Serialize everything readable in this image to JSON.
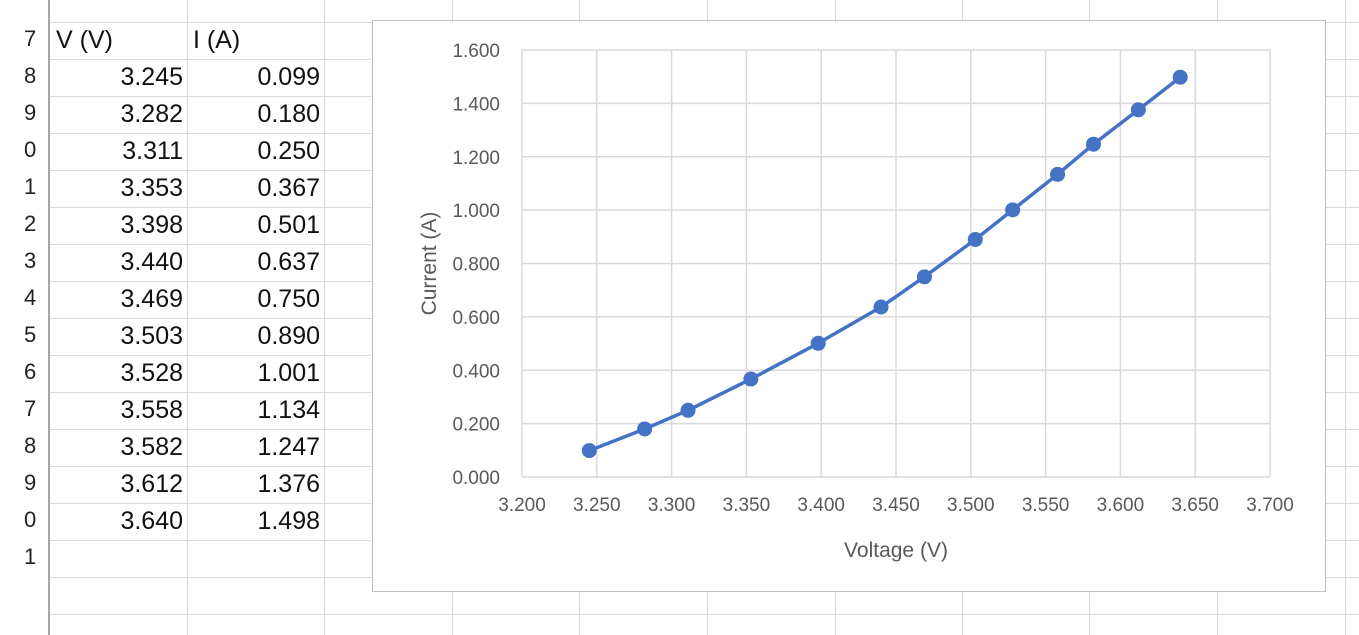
{
  "sheet": {
    "row_headers": [
      "7",
      "8",
      "9",
      "0",
      "1",
      "2",
      "3",
      "4",
      "5",
      "6",
      "7",
      "8",
      "9",
      "0",
      "1"
    ],
    "headers": {
      "v": "V (V)",
      "i": "I (A)"
    },
    "rows": [
      {
        "v": "3.245",
        "i": "0.099"
      },
      {
        "v": "3.282",
        "i": "0.180"
      },
      {
        "v": "3.311",
        "i": "0.250"
      },
      {
        "v": "3.353",
        "i": "0.367"
      },
      {
        "v": "3.398",
        "i": "0.501"
      },
      {
        "v": "3.440",
        "i": "0.637"
      },
      {
        "v": "3.469",
        "i": "0.750"
      },
      {
        "v": "3.503",
        "i": "0.890"
      },
      {
        "v": "3.528",
        "i": "1.001"
      },
      {
        "v": "3.558",
        "i": "1.134"
      },
      {
        "v": "3.582",
        "i": "1.247"
      },
      {
        "v": "3.612",
        "i": "1.376"
      },
      {
        "v": "3.640",
        "i": "1.498"
      }
    ]
  },
  "chart_data": {
    "type": "scatter",
    "mode": "lines+markers",
    "title": "",
    "xlabel": "Voltage (V)",
    "ylabel": "Current (A)",
    "x": [
      3.245,
      3.282,
      3.311,
      3.353,
      3.398,
      3.44,
      3.469,
      3.503,
      3.528,
      3.558,
      3.582,
      3.612,
      3.64
    ],
    "y": [
      0.099,
      0.18,
      0.25,
      0.367,
      0.501,
      0.637,
      0.75,
      0.89,
      1.001,
      1.134,
      1.247,
      1.376,
      1.498
    ],
    "xlim": [
      3.2,
      3.7
    ],
    "ylim": [
      0,
      1.6
    ],
    "x_ticks": [
      "3.200",
      "3.250",
      "3.300",
      "3.350",
      "3.400",
      "3.450",
      "3.500",
      "3.550",
      "3.600",
      "3.650",
      "3.700"
    ],
    "y_ticks": [
      "0.000",
      "0.200",
      "0.400",
      "0.600",
      "0.800",
      "1.000",
      "1.200",
      "1.400",
      "1.600"
    ],
    "grid": true,
    "legend": "none",
    "series_color": "#4472c4"
  }
}
